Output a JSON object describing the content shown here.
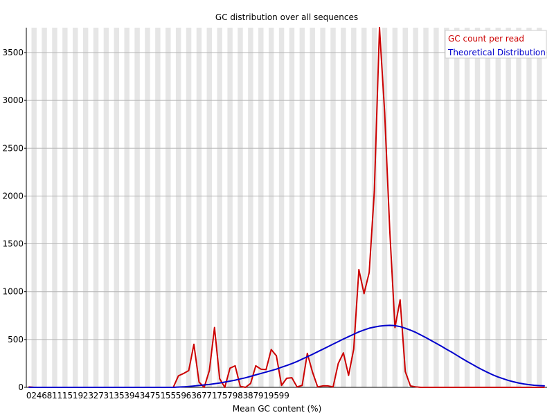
{
  "chart_data": {
    "type": "line",
    "title": "GC distribution over all sequences",
    "xlabel": "Mean GC content (%)",
    "ylabel": "",
    "xlim": [
      0,
      101
    ],
    "ylim": [
      0,
      3760
    ],
    "y_ticks": [
      0,
      500,
      1000,
      1500,
      2000,
      2500,
      3000,
      3500
    ],
    "x_tick_labels": [
      "0",
      "2",
      "4",
      "6",
      "8",
      "11",
      "15",
      "19",
      "23",
      "27",
      "31",
      "35",
      "39",
      "43",
      "47",
      "51",
      "55",
      "59",
      "63",
      "67",
      "71",
      "75",
      "79",
      "83",
      "87",
      "91",
      "95",
      "99"
    ],
    "x_tick_positions": [
      0,
      1,
      2,
      3,
      4,
      5.5,
      7.5,
      9.5,
      11.5,
      13.5,
      15.5,
      17.5,
      19.5,
      21.5,
      23.5,
      25.5,
      27.5,
      29.5,
      31.5,
      33.5,
      35.5,
      37.5,
      39.5,
      41.5,
      43.5,
      45.5,
      47.5,
      49.5
    ],
    "grid": "horizontal lines, alternating vertical grey bands",
    "legend_position": "top-right",
    "series": [
      {
        "name": "GC count per read",
        "color": "#cc0000",
        "x": [
          0,
          1,
          2,
          3,
          4,
          5,
          6,
          7,
          8,
          9,
          10,
          11,
          12,
          13,
          14,
          15,
          16,
          17,
          18,
          19,
          20,
          21,
          22,
          23,
          24,
          25,
          26,
          27,
          28,
          29,
          30,
          31,
          32,
          33,
          34,
          35,
          36,
          37,
          38,
          39,
          40,
          41,
          42,
          43,
          44,
          45,
          46,
          47,
          48,
          49,
          50,
          51,
          52,
          53,
          54,
          55,
          56,
          57,
          58,
          59,
          60,
          61,
          62,
          63,
          64,
          65,
          66,
          67,
          68,
          69,
          70,
          71,
          72,
          73,
          74,
          75,
          76,
          77,
          78,
          79,
          80,
          81,
          82,
          83,
          84,
          85,
          86,
          87,
          88,
          89,
          90,
          91,
          92,
          93,
          94,
          95,
          96,
          97,
          98,
          99,
          100
        ],
        "values": [
          5,
          0,
          0,
          0,
          0,
          0,
          0,
          0,
          0,
          0,
          0,
          0,
          0,
          0,
          0,
          0,
          0,
          0,
          0,
          0,
          0,
          0,
          0,
          0,
          0,
          0,
          0,
          0,
          0,
          120,
          145,
          175,
          450,
          55,
          0,
          175,
          625,
          90,
          0,
          200,
          225,
          10,
          0,
          40,
          225,
          190,
          185,
          395,
          330,
          20,
          95,
          100,
          5,
          20,
          355,
          160,
          5,
          15,
          15,
          5,
          250,
          360,
          125,
          400,
          1230,
          980,
          1200,
          2050,
          3760,
          2870,
          1630,
          625,
          915,
          165,
          15,
          5,
          0,
          0,
          0,
          0,
          0,
          0,
          0,
          0,
          0,
          0,
          0,
          0,
          0,
          0,
          0,
          0,
          0,
          0,
          0,
          0,
          0,
          0,
          0,
          0,
          0
        ]
      },
      {
        "name": "Theoretical Distribution",
        "color": "#0000cc",
        "x": [
          0,
          1,
          2,
          3,
          4,
          5,
          6,
          7,
          8,
          9,
          10,
          11,
          12,
          13,
          14,
          15,
          16,
          17,
          18,
          19,
          20,
          21,
          22,
          23,
          24,
          25,
          26,
          27,
          28,
          29,
          30,
          31,
          32,
          33,
          34,
          35,
          36,
          37,
          38,
          39,
          40,
          41,
          42,
          43,
          44,
          45,
          46,
          47,
          48,
          49,
          50,
          51,
          52,
          53,
          54,
          55,
          56,
          57,
          58,
          59,
          60,
          61,
          62,
          63,
          64,
          65,
          66,
          67,
          68,
          69,
          70,
          71,
          72,
          73,
          74,
          75,
          76,
          77,
          78,
          79,
          80,
          81,
          82,
          83,
          84,
          85,
          86,
          87,
          88,
          89,
          90,
          91,
          92,
          93,
          94,
          95,
          96,
          97,
          98,
          99,
          100
        ],
        "values": [
          0,
          0,
          0,
          0,
          0,
          0,
          0,
          0,
          0,
          0,
          0,
          0,
          0,
          0,
          0,
          0,
          0,
          0,
          0,
          0,
          0,
          0,
          0,
          0,
          0,
          0,
          0,
          0,
          0,
          3,
          5,
          9,
          14,
          20,
          25,
          30,
          38,
          45,
          55,
          65,
          75,
          88,
          100,
          115,
          130,
          145,
          160,
          175,
          190,
          210,
          228,
          248,
          270,
          295,
          320,
          345,
          372,
          398,
          425,
          452,
          478,
          505,
          530,
          555,
          580,
          600,
          618,
          630,
          640,
          645,
          648,
          645,
          635,
          618,
          598,
          575,
          548,
          520,
          490,
          460,
          430,
          398,
          368,
          335,
          302,
          270,
          240,
          210,
          182,
          155,
          130,
          108,
          90,
          72,
          58,
          45,
          35,
          28,
          22,
          18,
          15
        ]
      }
    ]
  }
}
